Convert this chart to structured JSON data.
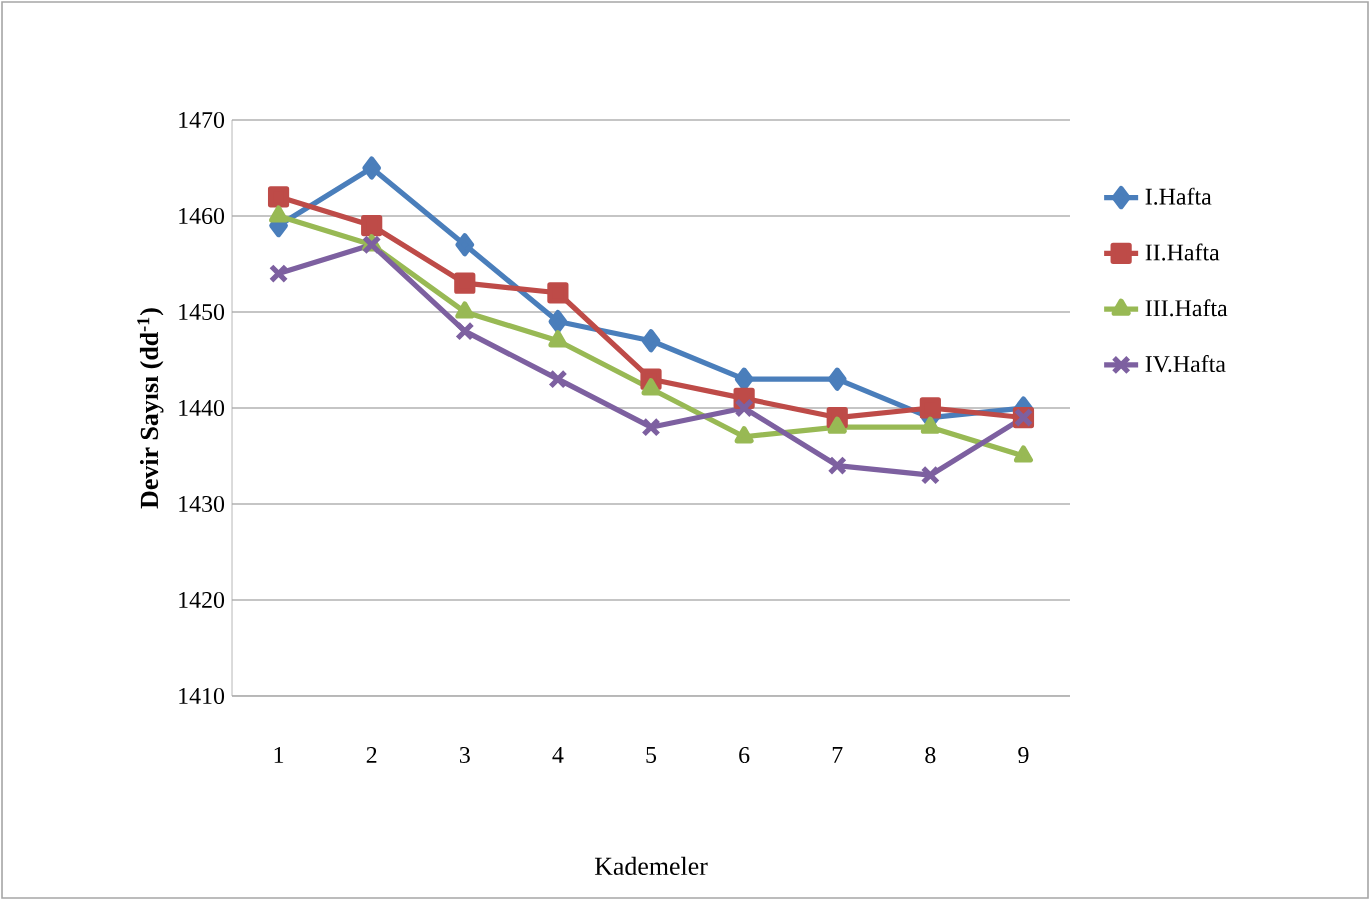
{
  "chart_data": {
    "type": "line",
    "xlabel": "Kademeler",
    "ylabel": "**Devir Sayısı (dd$^{-1}$)**",
    "categories": [
      "1",
      "2",
      "3",
      "4",
      "5",
      "6",
      "7",
      "8",
      "9"
    ],
    "series": [
      {
        "name": "I.Hafta",
        "color": "#4a7ebb",
        "marker": "diamond",
        "values": [
          1459,
          1465,
          1457,
          1449,
          1447,
          1443,
          1443,
          1439,
          1440
        ]
      },
      {
        "name": "II.Hafta",
        "color": "#be4b48",
        "marker": "square",
        "values": [
          1462,
          1459,
          1453,
          1452,
          1443,
          1441,
          1439,
          1440,
          1439
        ]
      },
      {
        "name": "III.Hafta",
        "color": "#98b954",
        "marker": "triangle",
        "values": [
          1460,
          1457,
          1450,
          1447,
          1442,
          1437,
          1438,
          1438,
          1435
        ]
      },
      {
        "name": "IV.Hafta",
        "color": "#7d60a0",
        "marker": "cross",
        "values": [
          1454,
          1457,
          1448,
          1443,
          1438,
          1440,
          1434,
          1433,
          1439
        ]
      }
    ],
    "ylim": [
      1410,
      1470
    ],
    "yticks": [
      1410,
      1420,
      1430,
      1440,
      1450,
      1460,
      1470
    ],
    "grid": "y",
    "legend": "right",
    "line_style": "solid"
  }
}
